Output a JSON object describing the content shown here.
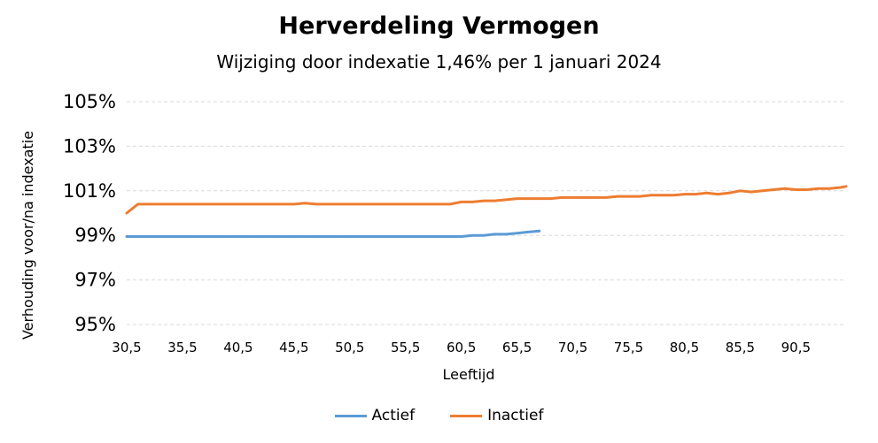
{
  "chart_data": {
    "type": "line",
    "title": "Herverdeling Vermogen",
    "subtitle": "Wijziging door indexatie 1,46% per 1 januari 2024",
    "xlabel": "Leeftijd",
    "ylabel": "Verhouding voor/na indexatie",
    "xlim": [
      30.5,
      95
    ],
    "ylim": [
      95,
      105
    ],
    "x_ticks": [
      30.5,
      35.5,
      40.5,
      45.5,
      50.5,
      55.5,
      60.5,
      65.5,
      70.5,
      75.5,
      80.5,
      85.5,
      90.5
    ],
    "x_tick_labels": [
      "30,5",
      "35,5",
      "40,5",
      "45,5",
      "50,5",
      "55,5",
      "60,5",
      "65,5",
      "70,5",
      "75,5",
      "80,5",
      "85,5",
      "90,5"
    ],
    "y_ticks": [
      95,
      97,
      99,
      101,
      103,
      105
    ],
    "y_tick_labels": [
      "95%",
      "97%",
      "99%",
      "101%",
      "103%",
      "105%"
    ],
    "grid": "horizontal dashed",
    "legend_position": "bottom",
    "series": [
      {
        "name": "Actief",
        "color": "#5B9BD5",
        "x": [
          30.5,
          35.5,
          40.5,
          45.5,
          50.5,
          55.5,
          60.5,
          61.5,
          62.5,
          63.5,
          64.5,
          65.5,
          66.5,
          67.5
        ],
        "y": [
          98.95,
          98.95,
          98.95,
          98.95,
          98.95,
          98.95,
          98.95,
          99.0,
          99.0,
          99.05,
          99.05,
          99.1,
          99.15,
          99.2
        ]
      },
      {
        "name": "Inactief",
        "color": "#ED7D31",
        "x": [
          30.5,
          31.5,
          35.5,
          40.5,
          45.5,
          46.5,
          47.5,
          50.5,
          55.5,
          59.5,
          60.5,
          61.5,
          62.5,
          63.5,
          64.5,
          65.5,
          66.5,
          67.5,
          68.5,
          69.5,
          70.5,
          71.5,
          72.5,
          73.5,
          74.5,
          75.5,
          76.5,
          77.5,
          78.5,
          79.5,
          80.5,
          81.5,
          82.5,
          83.5,
          84.5,
          85.5,
          86.5,
          87.5,
          88.5,
          89.5,
          90.5,
          91.5,
          92.5,
          93.5,
          94.5,
          95.0
        ],
        "y": [
          100.0,
          100.4,
          100.4,
          100.4,
          100.4,
          100.45,
          100.4,
          100.4,
          100.4,
          100.4,
          100.5,
          100.5,
          100.55,
          100.55,
          100.6,
          100.65,
          100.65,
          100.65,
          100.65,
          100.7,
          100.7,
          100.7,
          100.7,
          100.7,
          100.75,
          100.75,
          100.75,
          100.8,
          100.8,
          100.8,
          100.85,
          100.85,
          100.9,
          100.85,
          100.9,
          101.0,
          100.95,
          101.0,
          101.05,
          101.1,
          101.05,
          101.05,
          101.1,
          101.1,
          101.15,
          101.2
        ]
      }
    ]
  }
}
